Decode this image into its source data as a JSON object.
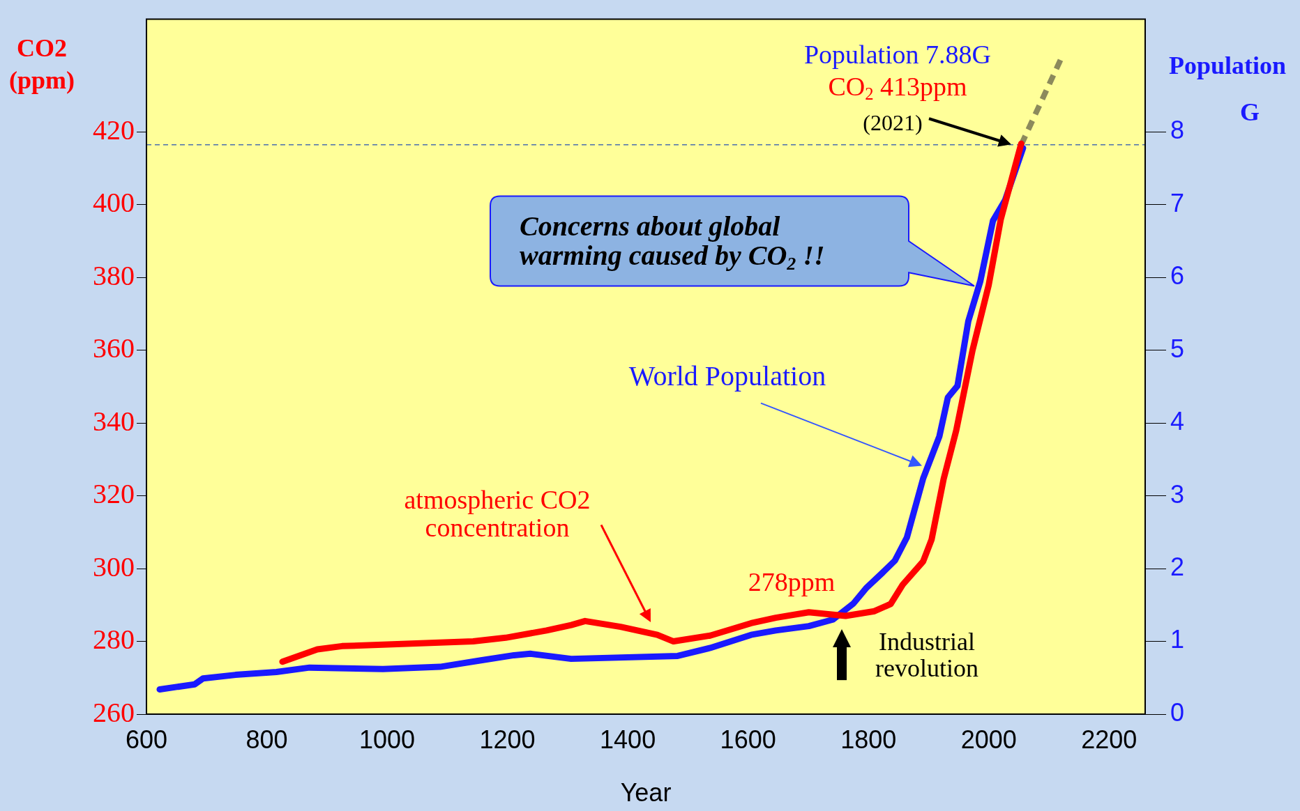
{
  "chart_data": {
    "type": "line",
    "xlabel": "Year",
    "ylabel": "CO2\n(ppm)",
    "y2label": "Population\nG",
    "xlim": [
      600,
      2260
    ],
    "xticks": [
      600,
      800,
      1000,
      1200,
      1400,
      1600,
      1800,
      2000,
      2200
    ],
    "ylim": [
      260,
      451
    ],
    "yticks": [
      260,
      280,
      300,
      320,
      340,
      360,
      380,
      400,
      420
    ],
    "y2lim": [
      0,
      9.55
    ],
    "y2ticks": [
      0,
      1,
      2,
      3,
      4,
      5,
      6,
      7,
      8
    ],
    "grid": false,
    "legend": false,
    "marker": "none",
    "line_style": "solid",
    "series": [
      {
        "color": "#ff0000",
        "axis": "y",
        "x": [
          826,
          884,
          925,
          1143,
          1197,
          1265,
          1306,
          1329,
          1388,
          1449,
          1476,
          1537,
          1605,
          1646,
          1701,
          1762,
          1810,
          1837,
          1857,
          1891,
          1905,
          1925,
          1946,
          1973,
          2000,
          2020,
          2054
        ],
        "values": [
          274.4,
          277.8,
          278.7,
          280,
          281,
          283,
          284.5,
          285.6,
          284,
          281.8,
          280,
          281.6,
          285,
          286.5,
          288,
          287,
          288.3,
          290.3,
          295.6,
          302,
          308,
          324.6,
          338,
          360,
          378,
          396,
          416.8
        ]
      },
      {
        "color": "#1a1aff",
        "axis": "y2",
        "x": [
          622,
          680,
          694,
          748,
          816,
          871,
          993,
          1088,
          1156,
          1211,
          1238,
          1306,
          1483,
          1537,
          1605,
          1646,
          1701,
          1741,
          1775,
          1796,
          1823,
          1844,
          1864,
          1891,
          1918,
          1932,
          1948,
          1966,
          1986,
          2007,
          2027,
          2057
        ],
        "values": [
          0.34,
          0.41,
          0.49,
          0.54,
          0.58,
          0.64,
          0.62,
          0.65,
          0.74,
          0.81,
          0.83,
          0.76,
          0.8,
          0.91,
          1.09,
          1.15,
          1.21,
          1.3,
          1.52,
          1.73,
          1.94,
          2.11,
          2.43,
          3.24,
          3.82,
          4.35,
          4.51,
          5.4,
          5.95,
          6.78,
          7.06,
          7.78
        ]
      },
      {
        "color": "#8c8a5c",
        "axis": "y",
        "line_style": "dashed",
        "x": [
          2054,
          2122
        ],
        "values": [
          416.5,
          440.8
        ]
      }
    ],
    "ref_lines": [
      {
        "axis": "y",
        "value": 416.5,
        "color": "#4a6fb0",
        "line_style": "dashed"
      }
    ],
    "annotations": [
      "Population 7.88G",
      "CO$_{2}$ 413ppm",
      "(2021)",
      "Concerns about global\nwarming caused by CO$_{2}$ !!",
      "World Population",
      "atmospheric CO2\nconcentration",
      "278ppm",
      "Industrial\nrevolution"
    ]
  }
}
